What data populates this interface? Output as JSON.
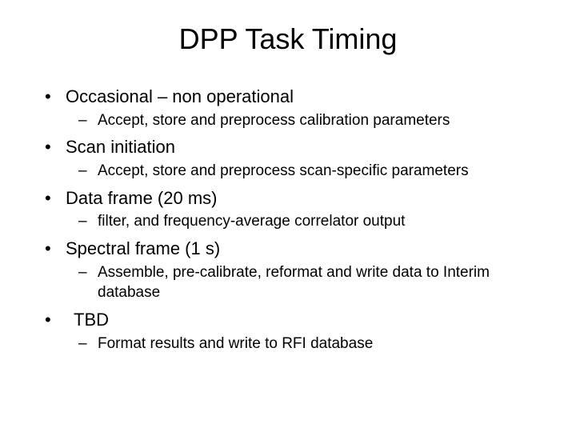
{
  "title": "DPP Task Timing",
  "items": [
    {
      "label": "Occasional – non operational",
      "sub": [
        "Accept, store and preprocess calibration parameters"
      ]
    },
    {
      "label": "Scan initiation",
      "sub": [
        "Accept, store and preprocess scan-specific parameters"
      ]
    },
    {
      "label": "Data frame (20 ms)",
      "sub": [
        "filter, and frequency-average correlator output"
      ]
    },
    {
      "label": "Spectral frame (1 s)",
      "sub": [
        "Assemble, pre-calibrate, reformat and write data to Interim database"
      ]
    },
    {
      "label": " TBD",
      "indented": true,
      "sub": [
        "Format results and write to RFI database"
      ]
    }
  ],
  "style": {
    "background_color": "#ffffff",
    "text_color": "#000000",
    "title_fontsize": 36,
    "l1_fontsize": 22,
    "l2_fontsize": 19,
    "font_family": "Arial, Helvetica, sans-serif",
    "bullet_glyph": "•",
    "dash_glyph": "–"
  }
}
